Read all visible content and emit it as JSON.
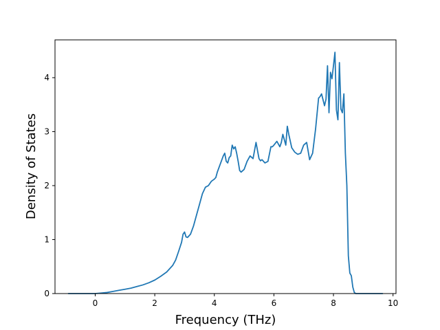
{
  "chart_data": {
    "type": "line",
    "title": "",
    "xlabel": "Frequency (THz)",
    "ylabel": "Density of States",
    "xlim": [
      -1.35,
      10.1
    ],
    "ylim": [
      0,
      4.7
    ],
    "xticks": [
      0,
      2,
      4,
      6,
      8,
      10
    ],
    "yticks": [
      0,
      1,
      2,
      3,
      4
    ],
    "grid": false,
    "legend": "none",
    "color": "#1f77b4",
    "series": [
      {
        "x": [
          -0.9,
          -0.5,
          0.0,
          0.2,
          0.4,
          0.6,
          0.8,
          1.0,
          1.2,
          1.4,
          1.6,
          1.8,
          2.0,
          2.2,
          2.4,
          2.6,
          2.7,
          2.8,
          2.9,
          2.95,
          3.0,
          3.05,
          3.1,
          3.2,
          3.3,
          3.4,
          3.5,
          3.6,
          3.7,
          3.8,
          3.9,
          4.0,
          4.05,
          4.1,
          4.2,
          4.3,
          4.35,
          4.4,
          4.45,
          4.5,
          4.55,
          4.6,
          4.65,
          4.7,
          4.75,
          4.8,
          4.85,
          4.9,
          5.0,
          5.1,
          5.2,
          5.3,
          5.4,
          5.5,
          5.55,
          5.6,
          5.7,
          5.8,
          5.9,
          5.95,
          6.0,
          6.1,
          6.2,
          6.25,
          6.3,
          6.4,
          6.45,
          6.5,
          6.6,
          6.7,
          6.8,
          6.9,
          7.0,
          7.1,
          7.2,
          7.3,
          7.4,
          7.5,
          7.55,
          7.6,
          7.7,
          7.75,
          7.8,
          7.85,
          7.9,
          7.95,
          8.0,
          8.05,
          8.1,
          8.15,
          8.2,
          8.25,
          8.3,
          8.35,
          8.4,
          8.45,
          8.5,
          8.55,
          8.6,
          8.65,
          8.7,
          8.75,
          8.8,
          9.0,
          9.65
        ],
        "y": [
          0.0,
          0.0,
          0.0,
          0.01,
          0.02,
          0.04,
          0.06,
          0.08,
          0.1,
          0.13,
          0.16,
          0.2,
          0.25,
          0.32,
          0.4,
          0.52,
          0.62,
          0.78,
          0.95,
          1.1,
          1.14,
          1.05,
          1.04,
          1.1,
          1.25,
          1.45,
          1.65,
          1.85,
          1.97,
          2.0,
          2.08,
          2.12,
          2.15,
          2.25,
          2.4,
          2.55,
          2.6,
          2.45,
          2.42,
          2.52,
          2.55,
          2.75,
          2.68,
          2.72,
          2.6,
          2.45,
          2.28,
          2.25,
          2.3,
          2.45,
          2.55,
          2.5,
          2.8,
          2.5,
          2.46,
          2.48,
          2.42,
          2.45,
          2.72,
          2.72,
          2.75,
          2.82,
          2.72,
          2.8,
          2.95,
          2.75,
          3.1,
          2.95,
          2.7,
          2.62,
          2.58,
          2.6,
          2.75,
          2.8,
          2.48,
          2.6,
          3.05,
          3.62,
          3.65,
          3.7,
          3.48,
          3.6,
          4.22,
          3.35,
          4.1,
          3.98,
          4.22,
          4.47,
          3.4,
          3.22,
          4.28,
          3.42,
          3.35,
          3.7,
          2.6,
          2.0,
          0.7,
          0.38,
          0.33,
          0.12,
          0.02,
          0.0,
          0.0,
          0.0,
          0.0
        ]
      }
    ]
  }
}
